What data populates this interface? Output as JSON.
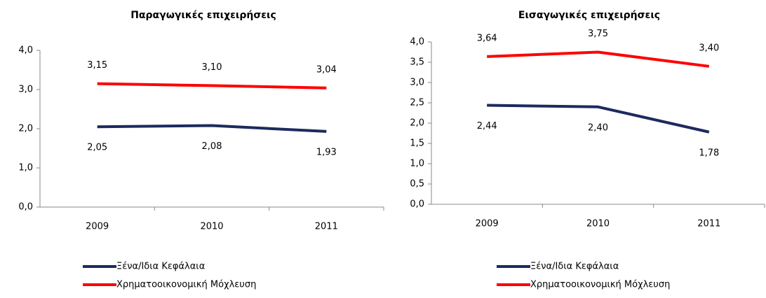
{
  "chart_data": [
    {
      "type": "line",
      "title": "Παραγωγικές επιχειρήσεις",
      "categories": [
        "2009",
        "2010",
        "2011"
      ],
      "series": [
        {
          "name": "Ξένα/Ιδια Κεφάλαια",
          "color": "#1c2a5e",
          "values": [
            2.05,
            2.08,
            1.93
          ],
          "value_labels": [
            "2,05",
            "2,08",
            "1,93"
          ]
        },
        {
          "name": "Χρηματοοικονομική Μόχλευση",
          "color": "#ff0000",
          "values": [
            3.15,
            3.1,
            3.04
          ],
          "value_labels": [
            "3,15",
            "3,10",
            "3,04"
          ]
        }
      ],
      "ylim": [
        0,
        4
      ],
      "yticks": [
        {
          "value": 0,
          "label": "0,0"
        },
        {
          "value": 1,
          "label": "1,0"
        },
        {
          "value": 2,
          "label": "2,0"
        },
        {
          "value": 3,
          "label": "3,0"
        },
        {
          "value": 4,
          "label": "4,0"
        }
      ],
      "grid": false,
      "legend": "bottom"
    },
    {
      "type": "line",
      "title": "Εισαγωγικές επιχειρήσεις",
      "categories": [
        "2009",
        "2010",
        "2011"
      ],
      "series": [
        {
          "name": "Ξένα/Ιδια Κεφάλαια",
          "color": "#1c2a5e",
          "values": [
            2.44,
            2.4,
            1.78
          ],
          "value_labels": [
            "2,44",
            "2,40",
            "1,78"
          ]
        },
        {
          "name": "Χρηματοοικονομική Μόχλευση",
          "color": "#ff0000",
          "values": [
            3.64,
            3.75,
            3.4
          ],
          "value_labels": [
            "3,64",
            "3,75",
            "3,40"
          ]
        }
      ],
      "ylim": [
        0,
        4
      ],
      "yticks": [
        {
          "value": 0,
          "label": "0,0"
        },
        {
          "value": 0.5,
          "label": "0,5"
        },
        {
          "value": 1,
          "label": "1,0"
        },
        {
          "value": 1.5,
          "label": "1,5"
        },
        {
          "value": 2,
          "label": "2,0"
        },
        {
          "value": 2.5,
          "label": "2,5"
        },
        {
          "value": 3,
          "label": "3,0"
        },
        {
          "value": 3.5,
          "label": "3,5"
        },
        {
          "value": 4,
          "label": "4,0"
        }
      ],
      "grid": false,
      "legend": "bottom"
    }
  ]
}
